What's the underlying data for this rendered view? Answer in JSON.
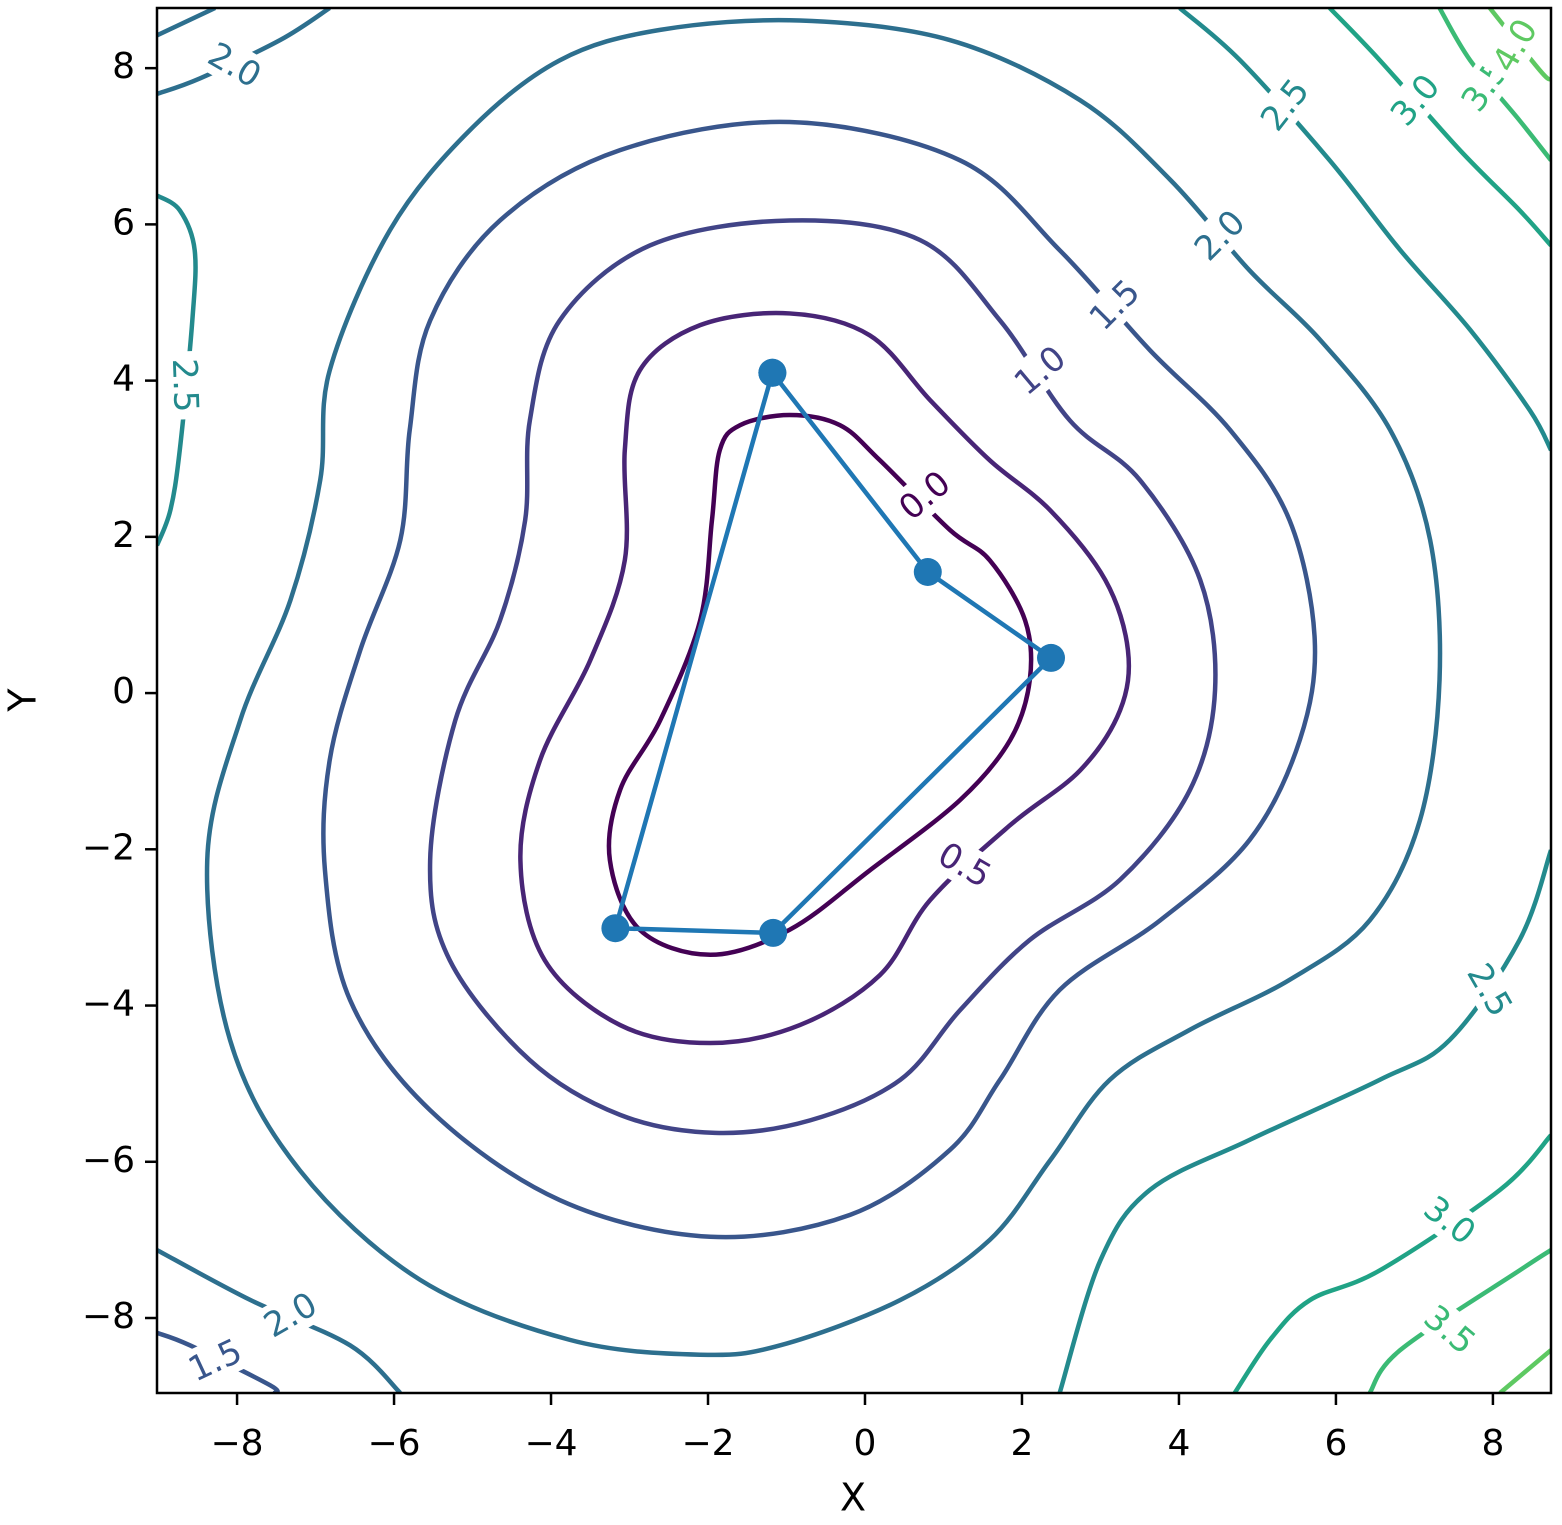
{
  "chart_data": {
    "type": "contour",
    "xlabel": "X",
    "ylabel": "Y",
    "xlim": [
      -9.02,
      8.74
    ],
    "ylim": [
      -8.96,
      8.77
    ],
    "xticks": [
      {
        "value": -8,
        "label": "−8"
      },
      {
        "value": -6,
        "label": "−6"
      },
      {
        "value": -4,
        "label": "−4"
      },
      {
        "value": -2,
        "label": "−2"
      },
      0,
      2,
      4,
      6,
      8
    ],
    "yticks": [
      {
        "value": -8,
        "label": "−8"
      },
      {
        "value": -6,
        "label": "−6"
      },
      {
        "value": -4,
        "label": "−4"
      },
      {
        "value": -2,
        "label": "−2"
      },
      0,
      2,
      4,
      6,
      8
    ],
    "contours": [
      {
        "level": {
          "value": 0,
          "label": "0.0"
        },
        "color": "#440154",
        "lines": [
          {
            "closed": true,
            "x": [
              -0.96,
              -1.59,
              -1.85,
              -1.95,
              -2.1,
              -2.61,
              -3.12,
              -3.25,
              -2.87,
              -1.97,
              -0.96,
              0.06,
              1.21,
              1.85,
              2.1,
              2.04,
              1.59,
              1.08,
              0.19,
              -0.32
            ],
            "y": [
              3.56,
              3.43,
              3.11,
              2.21,
              0.93,
              -0.35,
              -1.24,
              -2.14,
              -3.03,
              -3.35,
              -3.03,
              -2.27,
              -1.37,
              -0.6,
              0.17,
              0.93,
              1.7,
              2.09,
              2.98,
              3.43
            ]
          }
        ]
      },
      {
        "level": {
          "value": 0.5,
          "label": "0.5"
        },
        "color": "#482576",
        "lines": [
          {
            "closed": true,
            "x": [
              -0.96,
              -2.1,
              -2.87,
              -3.06,
              -3.06,
              -3.5,
              -4.14,
              -4.39,
              -4.08,
              -3.12,
              -1.97,
              -0.83,
              0.19,
              0.83,
              1.85,
              2.74,
              3.25,
              3.35,
              3.06,
              2.36,
              1.59,
              0.83,
              0.06
            ],
            "y": [
              4.86,
              4.71,
              4.13,
              3.11,
              1.7,
              0.42,
              -0.86,
              -2.14,
              -3.42,
              -4.25,
              -4.48,
              -4.25,
              -3.61,
              -2.65,
              -1.69,
              -0.99,
              -0.22,
              0.55,
              1.45,
              2.34,
              2.98,
              3.75,
              4.58
            ]
          }
        ]
      },
      {
        "level": {
          "value": 1,
          "label": "1.0"
        },
        "color": "#414487",
        "lines": [
          {
            "closed": true,
            "x": [
              -0.96,
              -2.74,
              -3.89,
              -4.27,
              -4.33,
              -4.65,
              -5.22,
              -5.54,
              -5.29,
              -4.27,
              -3.12,
              -1.91,
              -0.7,
              0.45,
              1.21,
              2.1,
              3.25,
              4.14,
              4.46,
              4.27,
              3.5,
              2.61,
              1.72,
              0.7
            ],
            "y": [
              6.05,
              5.73,
              4.77,
              3.49,
              2.21,
              0.93,
              -0.35,
              -2.14,
              -3.42,
              -4.7,
              -5.4,
              -5.63,
              -5.47,
              -4.95,
              -4.06,
              -3.16,
              -2.39,
              -1.24,
              0.04,
              1.45,
              2.73,
              3.49,
              4.77,
              5.8
            ]
          }
        ]
      },
      {
        "level": {
          "value": 1.5,
          "label": "1.5"
        },
        "color": "#39568c",
        "lines": [
          {
            "closed": true,
            "x": [
              -0.96,
              -3.12,
              -4.65,
              -5.54,
              -5.8,
              -5.92,
              -6.43,
              -6.82,
              -6.88,
              -6.56,
              -5.54,
              -3.89,
              -1.97,
              -0.19,
              1.08,
              1.72,
              2.48,
              3.76,
              4.9,
              5.54,
              5.73,
              5.41,
              4.65,
              3.63,
              2.48,
              1.21
            ],
            "y": [
              7.31,
              6.95,
              6.05,
              4.77,
              3.37,
              1.96,
              0.55,
              -0.86,
              -2.27,
              -3.93,
              -5.34,
              -6.49,
              -6.96,
              -6.68,
              -5.85,
              -4.95,
              -3.8,
              -2.91,
              -1.88,
              -0.6,
              0.68,
              2.21,
              3.37,
              4.39,
              5.67,
              6.82
            ]
          },
          {
            "x": [
              -9.02,
              -8.6,
              -7.58,
              -7.52
            ],
            "y": [
              -8.19,
              -8.35,
              -8.86,
              -8.96
            ]
          }
        ]
      },
      {
        "level": {
          "value": 2,
          "label": "2.0"
        },
        "color": "#2d6f8e",
        "lines": [
          {
            "closed": true,
            "x": [
              -2.61,
              -0.83,
              1.08,
              2.74,
              3.89,
              4.9,
              5.8,
              6.69,
              7.2,
              7.32,
              7.07,
              6.43,
              5.41,
              4.14,
              3.12,
              2.36,
              1.59,
              0.45,
              -1.08,
              -2.1,
              -3.76,
              -5.67,
              -7.2,
              -8.09,
              -8.38,
              -7.96,
              -7.32,
              -6.94,
              -6.82,
              -6.05,
              -5.03,
              -3.89
            ],
            "y": [
              8.49,
              8.61,
              8.36,
              7.59,
              6.57,
              5.41,
              4.52,
              3.37,
              1.96,
              0.17,
              -1.63,
              -2.91,
              -3.67,
              -4.31,
              -4.95,
              -5.98,
              -7.0,
              -7.77,
              -8.35,
              -8.47,
              -8.28,
              -7.51,
              -6.11,
              -4.44,
              -2.14,
              -0.35,
              1.19,
              2.73,
              4.13,
              5.93,
              7.21,
              8.1
            ]
          },
          {
            "x": [
              -9.02,
              -8.47,
              -7.45,
              -6.82
            ],
            "y": [
              7.67,
              7.87,
              8.36,
              8.77
            ]
          },
          {
            "x": [
              -9.02,
              -8.28
            ],
            "y": [
              8.42,
              8.77
            ]
          },
          {
            "x": [
              -9.02,
              -7.83,
              -6.56,
              -5.92
            ],
            "y": [
              -7.13,
              -7.77,
              -8.35,
              -8.96
            ]
          }
        ]
      },
      {
        "level": {
          "value": 2.5,
          "label": "2.5"
        },
        "color": "#238a8d",
        "lines": [
          {
            "x": [
              4.01,
              4.78,
              5.92,
              6.82,
              7.71,
              8.47,
              8.74
            ],
            "y": [
              8.77,
              8.1,
              6.82,
              5.67,
              4.65,
              3.62,
              3.11
            ]
          },
          {
            "x": [
              8.74,
              8.34,
              7.45,
              6.56,
              4.9,
              3.63,
              3.0,
              2.48
            ],
            "y": [
              -2.01,
              -3.16,
              -4.44,
              -4.95,
              -5.72,
              -6.36,
              -7.26,
              -8.96
            ]
          },
          {
            "x": [
              -9.02,
              -8.73,
              -8.54,
              -8.57,
              -8.73,
              -8.85,
              -9.02
            ],
            "y": [
              6.37,
              6.18,
              5.67,
              4.77,
              3.11,
              2.34,
              1.89
            ]
          }
        ]
      },
      {
        "level": {
          "value": 3,
          "label": "3.0"
        },
        "color": "#20a386",
        "lines": [
          {
            "x": [
              5.92,
              6.56,
              7.58,
              8.34,
              8.74
            ],
            "y": [
              8.77,
              8.1,
              6.95,
              6.18,
              5.73
            ]
          },
          {
            "x": [
              8.74,
              8.09,
              6.56,
              5.67,
              5.16,
              4.71
            ],
            "y": [
              -5.66,
              -6.36,
              -7.39,
              -7.77,
              -8.28,
              -8.96
            ]
          }
        ]
      },
      {
        "level": {
          "value": 3.5,
          "label": "3.5"
        },
        "color": "#3bbb75",
        "lines": [
          {
            "x": [
              7.32,
              7.71,
              8.34,
              8.74
            ],
            "y": [
              8.77,
              8.1,
              7.33,
              6.82
            ]
          },
          {
            "x": [
              8.74,
              8.34,
              6.82,
              6.43
            ],
            "y": [
              -7.13,
              -7.39,
              -8.41,
              -8.96
            ]
          }
        ]
      },
      {
        "level": {
          "value": 4,
          "label": "4.0"
        },
        "color": "#5ec962",
        "lines": [
          {
            "x": [
              7.96,
              8.6,
              8.74
            ],
            "y": [
              8.77,
              7.97,
              7.85
            ]
          },
          {
            "x": [
              8.74,
              8.09
            ],
            "y": [
              -8.41,
              -8.96
            ]
          }
        ]
      }
    ],
    "series": [
      {
        "color": "#1f77b4",
        "marker": true,
        "x": [
          -1.18,
          0.8,
          2.37,
          -1.17,
          -3.18,
          -1.18
        ],
        "y": [
          4.1,
          1.55,
          0.45,
          -3.07,
          -3.01,
          4.1
        ]
      }
    ]
  }
}
